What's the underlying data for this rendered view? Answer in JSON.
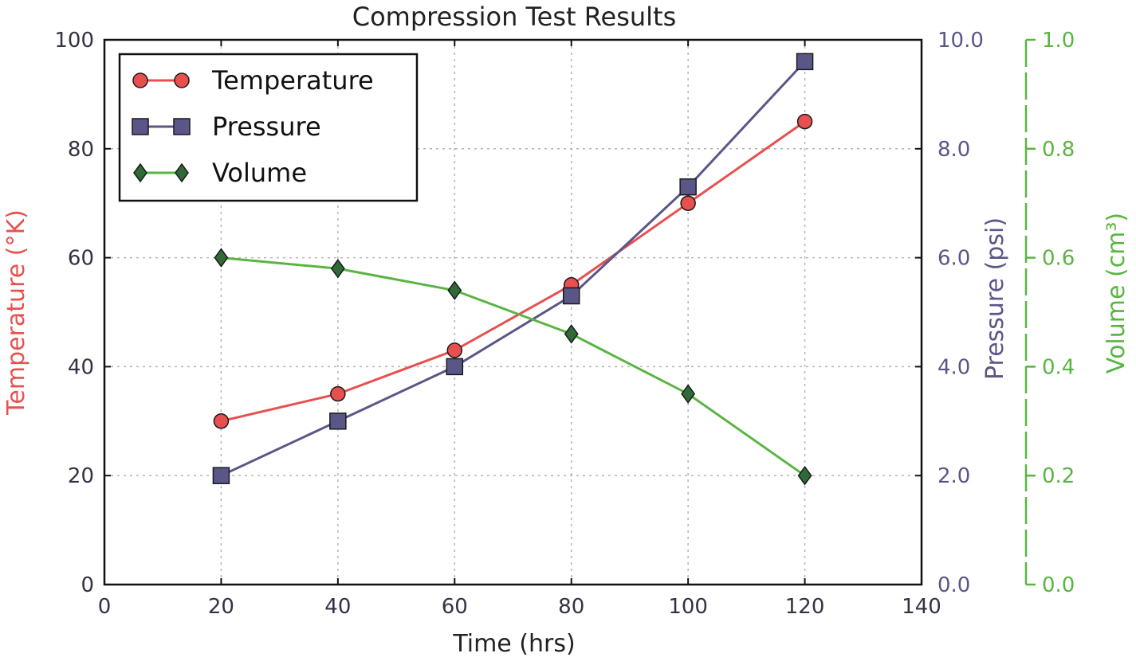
{
  "chart_data": {
    "type": "line",
    "title": "Compression Test Results",
    "xlabel": "Time (hrs)",
    "x": [
      20,
      40,
      60,
      80,
      100,
      120
    ],
    "xlim": [
      0,
      140
    ],
    "xticks": [
      "0",
      "20",
      "40",
      "60",
      "80",
      "100",
      "120",
      "140"
    ],
    "grid": true,
    "legend_position": "top-left",
    "axes": {
      "left": {
        "label": "Temperature (°K)",
        "ylim": [
          0,
          100
        ],
        "ticks": [
          "0",
          "20",
          "40",
          "60",
          "80",
          "100"
        ],
        "color": "#e8504f",
        "tick_color": "#333344"
      },
      "right": {
        "label": "Pressure (psi)",
        "ylim": [
          0,
          10
        ],
        "ticks": [
          "0.0",
          "2.0",
          "4.0",
          "6.0",
          "8.0",
          "10.0"
        ],
        "color": "#5a5687"
      },
      "right2": {
        "label": "Volume (cm³)",
        "ylim": [
          0,
          1
        ],
        "ticks": [
          "0.0",
          "0.2",
          "0.4",
          "0.6",
          "0.8",
          "1.0"
        ],
        "color": "#5ab442"
      }
    },
    "series": [
      {
        "name": "Temperature",
        "axis": "left",
        "values": [
          30,
          35,
          43,
          55,
          70,
          85
        ],
        "color": "#e8504f",
        "marker": "circle"
      },
      {
        "name": "Pressure",
        "axis": "right",
        "values": [
          2.0,
          3.0,
          4.0,
          5.3,
          7.3,
          9.6
        ],
        "color": "#5a5687",
        "marker": "square"
      },
      {
        "name": "Volume",
        "axis": "right2",
        "values": [
          0.6,
          0.58,
          0.54,
          0.46,
          0.35,
          0.2
        ],
        "color": "#5ab442",
        "marker": "diamond"
      }
    ]
  }
}
